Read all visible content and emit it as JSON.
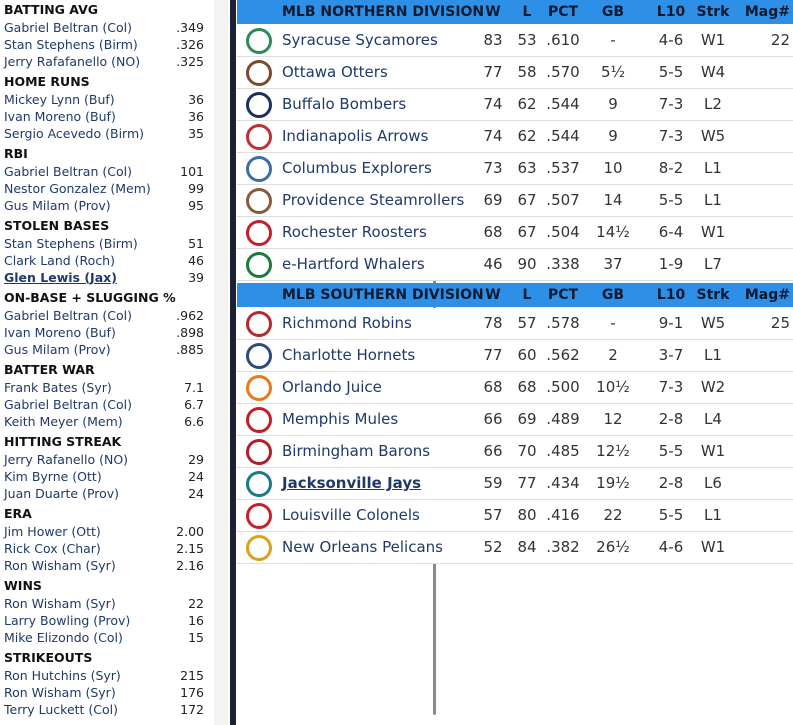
{
  "leaders": [
    {
      "title": "BATTING AVG",
      "rows": [
        [
          "Gabriel Beltran (Col)",
          ".349"
        ],
        [
          "Stan Stephens (Birm)",
          ".326"
        ],
        [
          "Jerry Rafafanello (NO)",
          ".325"
        ]
      ]
    },
    {
      "title": "HOME RUNS",
      "rows": [
        [
          "Mickey Lynn (Buf)",
          "36"
        ],
        [
          "Ivan Moreno (Buf)",
          "36"
        ],
        [
          "Sergio Acevedo (Birm)",
          "35"
        ]
      ]
    },
    {
      "title": "RBI",
      "rows": [
        [
          "Gabriel Beltran (Col)",
          "101"
        ],
        [
          "Nestor Gonzalez (Mem)",
          "99"
        ],
        [
          "Gus Milam (Prov)",
          "95"
        ]
      ]
    },
    {
      "title": "STOLEN BASES",
      "rows": [
        [
          "Stan Stephens (Birm)",
          "51"
        ],
        [
          "Clark Land (Roch)",
          "46"
        ],
        [
          "Glen Lewis (Jax)",
          "39"
        ]
      ]
    },
    {
      "title": "ON-BASE + SLUGGING %",
      "rows": [
        [
          "Gabriel Beltran (Col)",
          ".962"
        ],
        [
          "Ivan Moreno (Buf)",
          ".898"
        ],
        [
          "Gus Milam (Prov)",
          ".885"
        ]
      ]
    },
    {
      "title": "BATTER WAR",
      "rows": [
        [
          "Frank Bates (Syr)",
          "7.1"
        ],
        [
          "Gabriel Beltran (Col)",
          "6.7"
        ],
        [
          "Keith Meyer (Mem)",
          "6.6"
        ]
      ]
    },
    {
      "title": "HITTING STREAK",
      "rows": [
        [
          "Jerry Rafanello (NO)",
          "29"
        ],
        [
          "Kim Byrne (Ott)",
          "24"
        ],
        [
          "Juan Duarte (Prov)",
          "24"
        ]
      ]
    },
    {
      "title": "ERA",
      "rows": [
        [
          "Jim Hower (Ott)",
          "2.00"
        ],
        [
          "Rick Cox (Char)",
          "2.15"
        ],
        [
          "Ron Wisham (Syr)",
          "2.16"
        ]
      ]
    },
    {
      "title": "WINS",
      "rows": [
        [
          "Ron Wisham (Syr)",
          "22"
        ],
        [
          "Larry Bowling (Prov)",
          "16"
        ],
        [
          "Mike Elizondo (Col)",
          "15"
        ]
      ]
    },
    {
      "title": "STRIKEOUTS",
      "rows": [
        [
          "Ron Hutchins (Syr)",
          "215"
        ],
        [
          "Ron Wisham (Syr)",
          "176"
        ],
        [
          "Terry Luckett (Col)",
          "172"
        ]
      ]
    }
  ],
  "standings": [
    {
      "header": [
        "MLB NORTHERN DIVISION",
        "W",
        "L",
        "PCT",
        "GB",
        "L10",
        "Strk",
        "Mag#"
      ],
      "magic": "22",
      "rows": [
        [
          "Syracuse Sycamores",
          "83",
          "53",
          ".610",
          "-",
          "4-6",
          "W1"
        ],
        [
          "Ottawa Otters",
          "77",
          "58",
          ".570",
          "5½",
          "5-5",
          "W4"
        ],
        [
          "Buffalo Bombers",
          "74",
          "62",
          ".544",
          "9",
          "7-3",
          "L2"
        ],
        [
          "Indianapolis Arrows",
          "74",
          "62",
          ".544",
          "9",
          "7-3",
          "W5"
        ],
        [
          "Columbus Explorers",
          "73",
          "63",
          ".537",
          "10",
          "8-2",
          "L1"
        ],
        [
          "Providence Steamrollers",
          "69",
          "67",
          ".507",
          "14",
          "5-5",
          "L1"
        ],
        [
          "Rochester Roosters",
          "68",
          "67",
          ".504",
          "14½",
          "6-4",
          "W1"
        ],
        [
          "e-Hartford Whalers",
          "46",
          "90",
          ".338",
          "37",
          "1-9",
          "L7"
        ]
      ]
    },
    {
      "header": [
        "MLB SOUTHERN DIVISION",
        "W",
        "L",
        "PCT",
        "GB",
        "L10",
        "Strk",
        "Mag#"
      ],
      "magic": "25",
      "rows": [
        [
          "Richmond Robins",
          "78",
          "57",
          ".578",
          "-",
          "9-1",
          "W5"
        ],
        [
          "Charlotte Hornets",
          "77",
          "60",
          ".562",
          "2",
          "3-7",
          "L1"
        ],
        [
          "Orlando Juice",
          "68",
          "68",
          ".500",
          "10½",
          "7-3",
          "W2"
        ],
        [
          "Memphis Mules",
          "66",
          "69",
          ".489",
          "12",
          "2-8",
          "L4"
        ],
        [
          "Birmingham Barons",
          "66",
          "70",
          ".485",
          "12½",
          "5-5",
          "W1"
        ],
        [
          "Jacksonville Jays",
          "59",
          "77",
          ".434",
          "19½",
          "2-8",
          "L6"
        ],
        [
          "Louisville Colonels",
          "57",
          "80",
          ".416",
          "22",
          "5-5",
          "L1"
        ],
        [
          "New Orleans Pelicans",
          "52",
          "84",
          ".382",
          "26½",
          "4-6",
          "W1"
        ]
      ]
    }
  ]
}
